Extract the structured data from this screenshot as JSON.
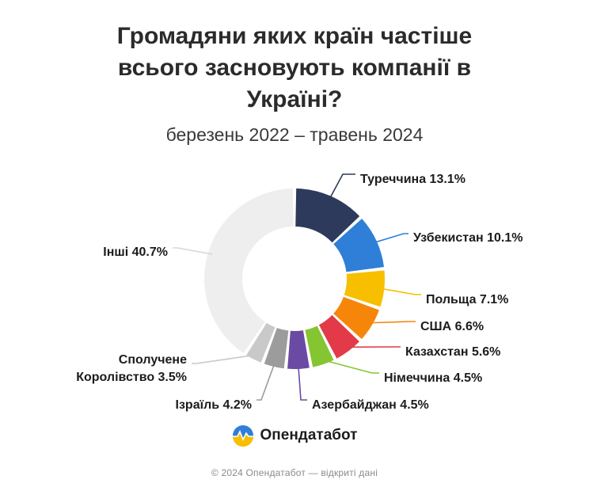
{
  "chart_data": {
    "type": "pie",
    "title_lines": [
      "Громадяни яких країн частіше",
      "всього засновують компанії в",
      "Україні?"
    ],
    "subtitle": "березень 2022 – травень 2024",
    "slices": [
      {
        "label": "Туреччина 13.1%",
        "value": 13.1,
        "color": "#2d3a5c"
      },
      {
        "label": "Узбекистан 10.1%",
        "value": 10.1,
        "color": "#2f7fd8"
      },
      {
        "label": "Польща 7.1%",
        "value": 7.1,
        "color": "#f7bf00"
      },
      {
        "label": "США 6.6%",
        "value": 6.6,
        "color": "#f6860a"
      },
      {
        "label": "Казахстан 5.6%",
        "value": 5.6,
        "color": "#e23a48"
      },
      {
        "label": "Німеччина 4.5%",
        "value": 4.5,
        "color": "#85c532"
      },
      {
        "label": "Азербайджан 4.5%",
        "value": 4.5,
        "color": "#6b4aa3"
      },
      {
        "label": "Ізраїль 4.2%",
        "value": 4.2,
        "color": "#9c9c9c"
      },
      {
        "label": "Сполучене|Королівство 3.5%",
        "value": 3.5,
        "color": "#c9c9c9"
      },
      {
        "label": "Інші 40.7%",
        "value": 40.7,
        "color": "#eeeeee"
      }
    ]
  },
  "brand": {
    "name": "Опендатабот",
    "logo_colors": [
      "#2f7fd8",
      "#f7bf00"
    ]
  },
  "footer": "© 2024 Опендатабот — відкриті дані"
}
